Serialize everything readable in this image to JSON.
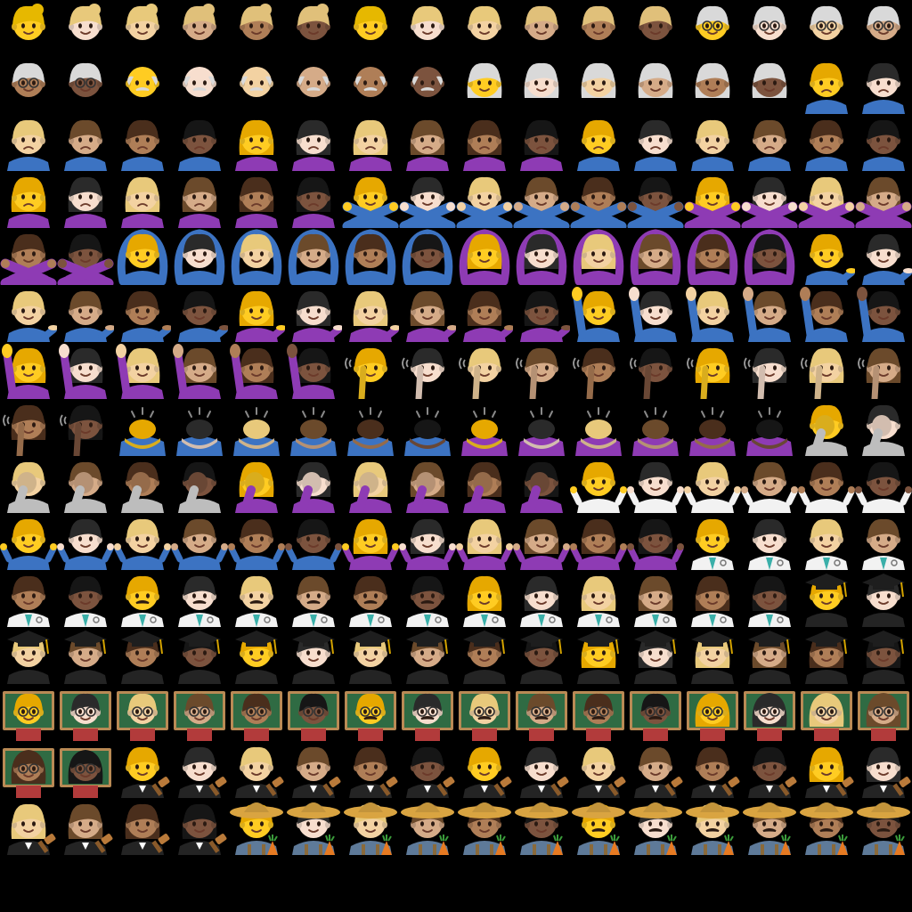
{
  "background": "#000000",
  "grid": {
    "columns": 16,
    "rows": 16
  },
  "palettes": {
    "skin": [
      "#FFCC22",
      "#F7DECE",
      "#F3D2A2",
      "#D5AB88",
      "#AF7E57",
      "#7C533E",
      "#5C3D2E"
    ],
    "hair": [
      "#FFCC22",
      "#E8C97B",
      "#E0C07A",
      "#6B4A2B",
      "#4A2E1C",
      "#2B1A12",
      "#161616",
      "#D9D9D9"
    ],
    "clothing": {
      "blue": "#3C73C2",
      "purple": "#8E3BB4",
      "gray": "#BDBDBD",
      "white": "#F2F2F2",
      "black": "#242424",
      "chalkboard": "#2F6B43",
      "frame": "#B98A55",
      "straw_hat": "#D9A441",
      "farm_shirt": "#5E7A99"
    }
  },
  "emoji_groups": [
    {
      "name": "woman-blond-hair",
      "skins": [
        0,
        1,
        2,
        3,
        4,
        5
      ],
      "hair": "blond",
      "body": "none"
    },
    {
      "name": "man-blond-hair",
      "skins": [
        0,
        1,
        2,
        3,
        4,
        5
      ],
      "hair": "blond",
      "body": "none"
    },
    {
      "name": "older-adult",
      "skins": [
        0,
        1,
        2,
        3,
        4,
        5
      ],
      "hair": "gray",
      "body": "none"
    },
    {
      "name": "old-man",
      "skins": [
        0,
        1,
        2,
        3,
        4,
        5
      ],
      "hair": "gray",
      "body": "none"
    },
    {
      "name": "old-woman",
      "skins": [
        0,
        1,
        2,
        3,
        4,
        5
      ],
      "hair": "gray",
      "body": "none"
    },
    {
      "name": "man-frowning",
      "skins": [
        0,
        1,
        2,
        3,
        4,
        5
      ],
      "hair": "short",
      "body": "blue"
    },
    {
      "name": "woman-frowning",
      "skins": [
        0,
        1,
        2,
        3,
        4,
        5
      ],
      "hair": "long",
      "body": "purple"
    },
    {
      "name": "man-pouting",
      "skins": [
        0,
        1,
        2,
        3,
        4,
        5
      ],
      "hair": "short",
      "body": "blue"
    },
    {
      "name": "woman-pouting",
      "skins": [
        0,
        1,
        2,
        3,
        4,
        5
      ],
      "hair": "long",
      "body": "purple"
    },
    {
      "name": "man-gesturing-no",
      "skins": [
        0,
        1,
        2,
        3,
        4,
        5
      ],
      "hair": "short",
      "body": "blue",
      "pose": "crossed-arms"
    },
    {
      "name": "woman-gesturing-no",
      "skins": [
        0,
        1,
        2,
        3,
        4,
        5
      ],
      "hair": "long",
      "body": "purple",
      "pose": "crossed-arms"
    },
    {
      "name": "man-gesturing-ok",
      "skins": [
        0,
        1,
        2,
        3,
        4,
        5
      ],
      "hair": "short",
      "body": "blue",
      "pose": "arms-overhead"
    },
    {
      "name": "woman-gesturing-ok",
      "skins": [
        0,
        1,
        2,
        3,
        4,
        5
      ],
      "hair": "long",
      "body": "purple",
      "pose": "arms-overhead"
    },
    {
      "name": "man-tipping-hand",
      "skins": [
        0,
        1,
        2,
        3,
        4,
        5
      ],
      "hair": "short",
      "body": "blue",
      "pose": "palm-up"
    },
    {
      "name": "woman-tipping-hand",
      "skins": [
        0,
        1,
        2,
        3,
        4,
        5
      ],
      "hair": "long",
      "body": "purple",
      "pose": "palm-up"
    },
    {
      "name": "man-raising-hand",
      "skins": [
        0,
        1,
        2,
        3,
        4,
        5
      ],
      "hair": "short",
      "body": "blue",
      "pose": "raised-hand"
    },
    {
      "name": "woman-raising-hand",
      "skins": [
        0,
        1,
        2,
        3,
        4,
        5
      ],
      "hair": "long",
      "body": "purple",
      "pose": "raised-hand"
    },
    {
      "name": "man-deaf",
      "skins": [
        0,
        1,
        2,
        3,
        4,
        5
      ],
      "hair": "short",
      "body": "none",
      "pose": "ear"
    },
    {
      "name": "woman-deaf",
      "skins": [
        0,
        1,
        2,
        3,
        4,
        5
      ],
      "hair": "long",
      "body": "none",
      "pose": "ear"
    },
    {
      "name": "man-bowing",
      "skins": [
        0,
        1,
        2,
        3,
        4,
        5
      ],
      "hair": "short",
      "body": "blue",
      "pose": "bow"
    },
    {
      "name": "woman-bowing",
      "skins": [
        0,
        1,
        2,
        3,
        4,
        5
      ],
      "hair": "bun",
      "body": "purple",
      "pose": "bow"
    },
    {
      "name": "man-facepalming",
      "skins": [
        0,
        1,
        2,
        3,
        4,
        5
      ],
      "hair": "short",
      "body": "gray",
      "pose": "facepalm"
    },
    {
      "name": "woman-facepalming",
      "skins": [
        0,
        1,
        2,
        3,
        4,
        5
      ],
      "hair": "long",
      "body": "purple",
      "pose": "facepalm"
    },
    {
      "name": "person-shrugging",
      "skins": [
        0,
        1,
        2,
        3,
        4,
        5
      ],
      "hair": "short",
      "body": "white",
      "pose": "shrug"
    },
    {
      "name": "man-shrugging",
      "skins": [
        0,
        1,
        2,
        3,
        4,
        5
      ],
      "hair": "short",
      "body": "blue",
      "pose": "shrug"
    },
    {
      "name": "woman-shrugging",
      "skins": [
        0,
        1,
        2,
        3,
        4,
        5
      ],
      "hair": "long",
      "body": "purple",
      "pose": "shrug"
    },
    {
      "name": "health-worker",
      "skins": [
        0,
        1,
        2,
        3,
        4,
        5
      ],
      "hair": "short",
      "body": "coat"
    },
    {
      "name": "man-health-worker",
      "skins": [
        0,
        1,
        2,
        3,
        4,
        5
      ],
      "hair": "short",
      "body": "coat",
      "mustache": true
    },
    {
      "name": "woman-health-worker",
      "skins": [
        0,
        1,
        2,
        3,
        4,
        5
      ],
      "hair": "long",
      "body": "coat"
    },
    {
      "name": "student",
      "skins": [
        0,
        1,
        2,
        3,
        4,
        5
      ],
      "hair": "short",
      "body": "black",
      "hat": "grad"
    },
    {
      "name": "man-student",
      "skins": [
        0,
        1,
        2,
        3,
        4,
        5
      ],
      "hair": "short",
      "body": "black",
      "hat": "grad"
    },
    {
      "name": "woman-student",
      "skins": [
        0,
        1,
        2,
        3,
        4,
        5
      ],
      "hair": "long",
      "body": "black",
      "hat": "grad"
    },
    {
      "name": "teacher",
      "skins": [
        0,
        1,
        2,
        3,
        4,
        5
      ],
      "hair": "short",
      "body": "board",
      "glasses": true
    },
    {
      "name": "man-teacher",
      "skins": [
        0,
        1,
        2,
        3,
        4,
        5
      ],
      "hair": "short",
      "body": "board",
      "glasses": true,
      "mustache": true
    },
    {
      "name": "woman-teacher",
      "skins": [
        0,
        1,
        2,
        3,
        4,
        5
      ],
      "hair": "long",
      "body": "board",
      "glasses": true
    },
    {
      "name": "judge",
      "skins": [
        0,
        1,
        2,
        3,
        4,
        5
      ],
      "hair": "short",
      "body": "robe",
      "pose": "gavel"
    },
    {
      "name": "man-judge",
      "skins": [
        0,
        1,
        2,
        3,
        4,
        5
      ],
      "hair": "short",
      "body": "robe",
      "pose": "gavel"
    },
    {
      "name": "woman-judge",
      "skins": [
        0,
        1,
        2,
        3,
        4,
        5
      ],
      "hair": "long",
      "body": "robe",
      "pose": "gavel"
    },
    {
      "name": "farmer",
      "skins": [
        0,
        1,
        2,
        3,
        4,
        5
      ],
      "hair": "short",
      "body": "farm",
      "hat": "straw"
    },
    {
      "name": "man-farmer",
      "skins": [
        0,
        1,
        2,
        3,
        4,
        5
      ],
      "hair": "short",
      "body": "farm",
      "hat": "straw",
      "mustache": true
    }
  ]
}
